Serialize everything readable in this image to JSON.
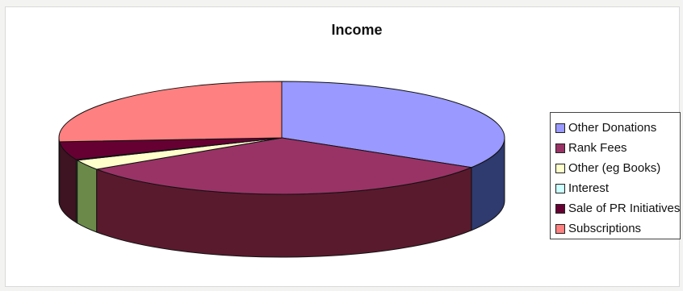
{
  "chart_data": {
    "type": "pie",
    "title": "Income",
    "categories": [
      "Other Donations",
      "Rank Fees",
      "Other (eg Books)",
      "Interest",
      "Sale of PR Initiatives",
      "Subscriptions"
    ],
    "values": [
      33.8,
      31.8,
      2.9,
      0.2,
      5.2,
      26.1
    ],
    "unit": "%",
    "colors": [
      "#9999ff",
      "#993366",
      "#ffffcc",
      "#ccffff",
      "#660033",
      "#ff8080"
    ],
    "side_colors": [
      "#2f3a6e",
      "#5a1a2e",
      "#6b8a4a",
      "#6b8a4a",
      "#3e1322",
      "#a0504e"
    ],
    "legend_position": "right",
    "style": "3d-pie"
  }
}
